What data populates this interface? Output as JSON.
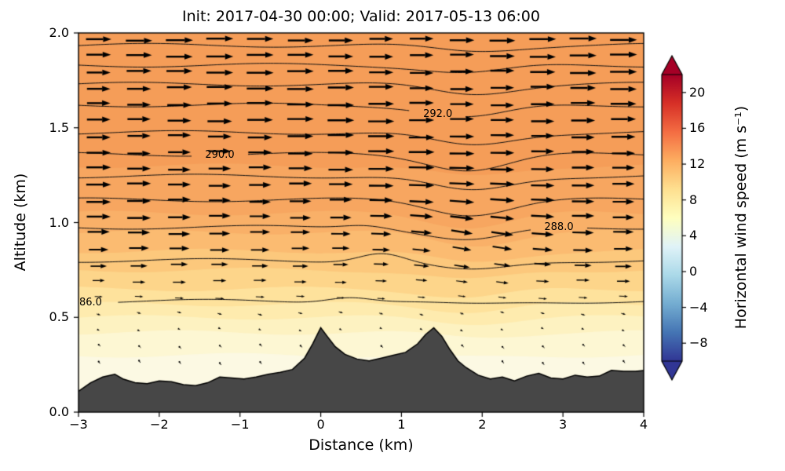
{
  "chart_data": {
    "type": "heatmap",
    "subtype": "filled-contour vertical cross-section with temperature contours, wind quiver and terrain",
    "title": "Init: 2017-04-30 00:00; Valid: 2017-05-13 06:00",
    "xlabel": "Distance (km)",
    "ylabel": "Altitude (km)",
    "xlim": [
      -3,
      4
    ],
    "ylim": [
      0,
      2
    ],
    "x_tick_values": [
      -3,
      -2,
      -1,
      0,
      1,
      2,
      3,
      4
    ],
    "x_tick_labels": [
      "−3",
      "−2",
      "−1",
      "0",
      "1",
      "2",
      "3",
      "4"
    ],
    "y_tick_values": [
      0,
      0.5,
      1,
      1.5,
      2
    ],
    "y_tick_labels": [
      "0.0",
      "0.5",
      "1.0",
      "1.5",
      "2.0"
    ],
    "grid": false,
    "colorbar": {
      "label": "Horizontal wind speed (m s⁻¹)",
      "tick_values": [
        -8,
        -4,
        0,
        4,
        8,
        12,
        16,
        20
      ],
      "tick_labels": [
        "−8",
        "−4",
        "0",
        "4",
        "8",
        "12",
        "16",
        "20"
      ],
      "vmin": -10,
      "vmax": 22,
      "extend": "both",
      "cmap": "RdYlBu_r",
      "cmap_stops": [
        [
          0,
          "#313695"
        ],
        [
          0.1,
          "#4575b4"
        ],
        [
          0.2,
          "#74add1"
        ],
        [
          0.3,
          "#abd9e9"
        ],
        [
          0.4,
          "#e0f3f8"
        ],
        [
          0.5,
          "#ffffbf"
        ],
        [
          0.6,
          "#fee090"
        ],
        [
          0.7,
          "#fdae61"
        ],
        [
          0.8,
          "#f46d43"
        ],
        [
          0.9,
          "#d73027"
        ],
        [
          1,
          "#a50026"
        ]
      ]
    },
    "temperature_contours": [
      {
        "alt": 0.585,
        "dip": 0.02,
        "bump": {
          "x": 0.35,
          "amp": 0.028
        },
        "label": "86.0",
        "label_x": -2.85
      },
      {
        "alt": 0.8,
        "dip": 0.055,
        "bump": {
          "x": 0.75,
          "amp": 0.045
        }
      },
      {
        "alt": 0.975,
        "dip": 0.07,
        "bump": {
          "x": 0.55,
          "amp": 0.02
        },
        "label": "288.0",
        "label_x": 2.95
      },
      {
        "alt": 1.12,
        "dip": 0.075
      },
      {
        "alt": 1.245,
        "dip": 0.08
      },
      {
        "alt": 1.36,
        "dip": 0.08,
        "label": "290.0",
        "label_x": -1.25
      },
      {
        "alt": 1.475,
        "dip": 0.07
      },
      {
        "alt": 1.62,
        "dip": 0.065,
        "label": "292.0",
        "label_x": 1.45
      },
      {
        "alt": 1.73,
        "dip": 0.05
      },
      {
        "alt": 1.83,
        "dip": 0.04
      },
      {
        "alt": 1.935,
        "dip": 0.03
      }
    ],
    "field_bands": [
      {
        "top": 0.3,
        "color": "#fcf9e3"
      },
      {
        "top": 0.42,
        "color": "#fdf7d3"
      },
      {
        "top": 0.5,
        "color": "#fdf2c1"
      },
      {
        "top": 0.57,
        "color": "#feebae"
      },
      {
        "top": 0.65,
        "color": "#fee29c"
      },
      {
        "top": 0.75,
        "color": "#fdd58a"
      },
      {
        "top": 0.85,
        "color": "#fcc87c"
      },
      {
        "top": 0.95,
        "color": "#fbbb71"
      },
      {
        "top": 1.05,
        "color": "#f9b068"
      },
      {
        "top": 1.3,
        "color": "#f7a660"
      },
      {
        "top": 2.0,
        "color": "#f59d58"
      }
    ],
    "terrain": {
      "color": "#474747",
      "points": [
        [
          -3.0,
          0.11
        ],
        [
          -2.85,
          0.155
        ],
        [
          -2.7,
          0.185
        ],
        [
          -2.55,
          0.2
        ],
        [
          -2.45,
          0.175
        ],
        [
          -2.3,
          0.155
        ],
        [
          -2.15,
          0.15
        ],
        [
          -2.0,
          0.165
        ],
        [
          -1.85,
          0.16
        ],
        [
          -1.7,
          0.145
        ],
        [
          -1.55,
          0.14
        ],
        [
          -1.4,
          0.155
        ],
        [
          -1.25,
          0.185
        ],
        [
          -1.1,
          0.18
        ],
        [
          -0.95,
          0.175
        ],
        [
          -0.8,
          0.185
        ],
        [
          -0.65,
          0.2
        ],
        [
          -0.5,
          0.21
        ],
        [
          -0.35,
          0.225
        ],
        [
          -0.2,
          0.285
        ],
        [
          -0.1,
          0.36
        ],
        [
          0.0,
          0.445
        ],
        [
          0.08,
          0.4
        ],
        [
          0.18,
          0.345
        ],
        [
          0.3,
          0.305
        ],
        [
          0.45,
          0.28
        ],
        [
          0.6,
          0.27
        ],
        [
          0.75,
          0.285
        ],
        [
          0.9,
          0.3
        ],
        [
          1.05,
          0.315
        ],
        [
          1.2,
          0.36
        ],
        [
          1.3,
          0.41
        ],
        [
          1.4,
          0.445
        ],
        [
          1.5,
          0.4
        ],
        [
          1.6,
          0.33
        ],
        [
          1.7,
          0.27
        ],
        [
          1.8,
          0.235
        ],
        [
          1.95,
          0.195
        ],
        [
          2.1,
          0.175
        ],
        [
          2.25,
          0.185
        ],
        [
          2.4,
          0.165
        ],
        [
          2.55,
          0.19
        ],
        [
          2.7,
          0.205
        ],
        [
          2.85,
          0.18
        ],
        [
          3.0,
          0.175
        ],
        [
          3.15,
          0.195
        ],
        [
          3.3,
          0.185
        ],
        [
          3.45,
          0.19
        ],
        [
          3.6,
          0.22
        ],
        [
          3.75,
          0.215
        ],
        [
          3.9,
          0.215
        ],
        [
          4.0,
          0.22
        ]
      ]
    },
    "wind": {
      "x_start": -2.75,
      "x_end": 3.75,
      "x_step": 0.5,
      "alt_start": 0.265,
      "alt_end": 1.97,
      "alt_step": 0.085,
      "direction": "west-to-east (arrows point right); weak downslope-tilted flow below ~0.6 km",
      "speed_profile": [
        [
          0.25,
          0.4
        ],
        [
          0.35,
          0.6
        ],
        [
          0.45,
          0.9
        ],
        [
          0.55,
          1.8
        ],
        [
          0.62,
          3.2
        ],
        [
          0.7,
          4.5
        ],
        [
          0.8,
          6.0
        ],
        [
          0.9,
          7.0
        ],
        [
          1.0,
          7.8
        ],
        [
          1.2,
          8.4
        ],
        [
          1.5,
          8.8
        ],
        [
          2.0,
          9.0
        ]
      ]
    }
  }
}
